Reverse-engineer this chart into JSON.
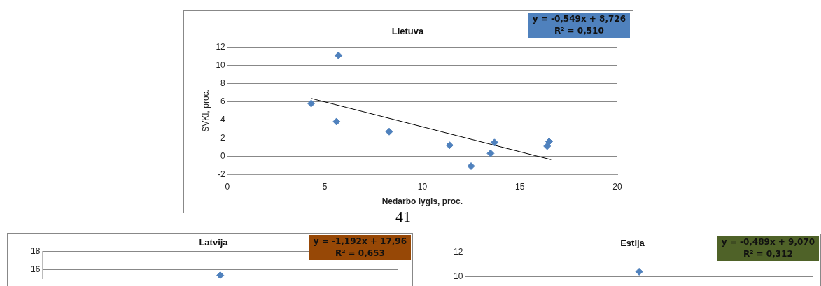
{
  "chart_data": [
    {
      "type": "scatter",
      "title": "Lietuva",
      "xlabel": "Nedarbo lygis, proc.",
      "ylabel": "SVKI, proc.",
      "xlim": [
        0,
        20
      ],
      "xticks": [
        0,
        5,
        10,
        15,
        20
      ],
      "ylim": [
        -2,
        12
      ],
      "yticks": [
        -2,
        0,
        2,
        4,
        6,
        8,
        10,
        12
      ],
      "grid": "y",
      "legend": false,
      "annotations": [
        "y = -0,549x + 8,726",
        "R² = 0,510",
        "41"
      ],
      "series": [
        {
          "type": "scatter",
          "marker": "diamond",
          "color": "#4f81bd",
          "x": [
            4.3,
            5.7,
            5.6,
            8.3,
            11.4,
            12.5,
            13.5,
            13.7,
            16.4,
            16.5
          ],
          "values": [
            5.8,
            11.1,
            3.8,
            2.7,
            1.2,
            -1.1,
            0.3,
            1.5,
            1.1,
            1.6
          ]
        },
        {
          "type": "line",
          "marker": "none",
          "color": "#000000",
          "x": [
            4.3,
            16.6
          ],
          "values": [
            6.36,
            -0.39
          ]
        }
      ]
    },
    {
      "type": "scatter",
      "title": "Latvija",
      "categories": [
        null
      ],
      "ylim": [
        15,
        18
      ],
      "yticks": [
        16,
        18
      ],
      "grid": "y",
      "legend": false,
      "marker": "diamond",
      "tick_labels": "y",
      "annotations": [
        "y = -1,192x + 17,96",
        "R² = 0,653"
      ],
      "series": [
        {
          "type": "scatter",
          "color": "#4f81bd",
          "values": [
            15.4
          ]
        }
      ]
    },
    {
      "type": "scatter",
      "title": "Estija",
      "categories": [
        null
      ],
      "ylim": [
        9.8,
        12
      ],
      "yticks": [
        10,
        12
      ],
      "grid": "y",
      "legend": false,
      "marker": "diamond",
      "tick_labels": "y",
      "annotations": [
        "y = -0,489x + 9,070",
        "R² = 0,312"
      ],
      "series": [
        {
          "type": "scatter",
          "color": "#4f81bd",
          "values": [
            10.4
          ]
        }
      ]
    }
  ]
}
